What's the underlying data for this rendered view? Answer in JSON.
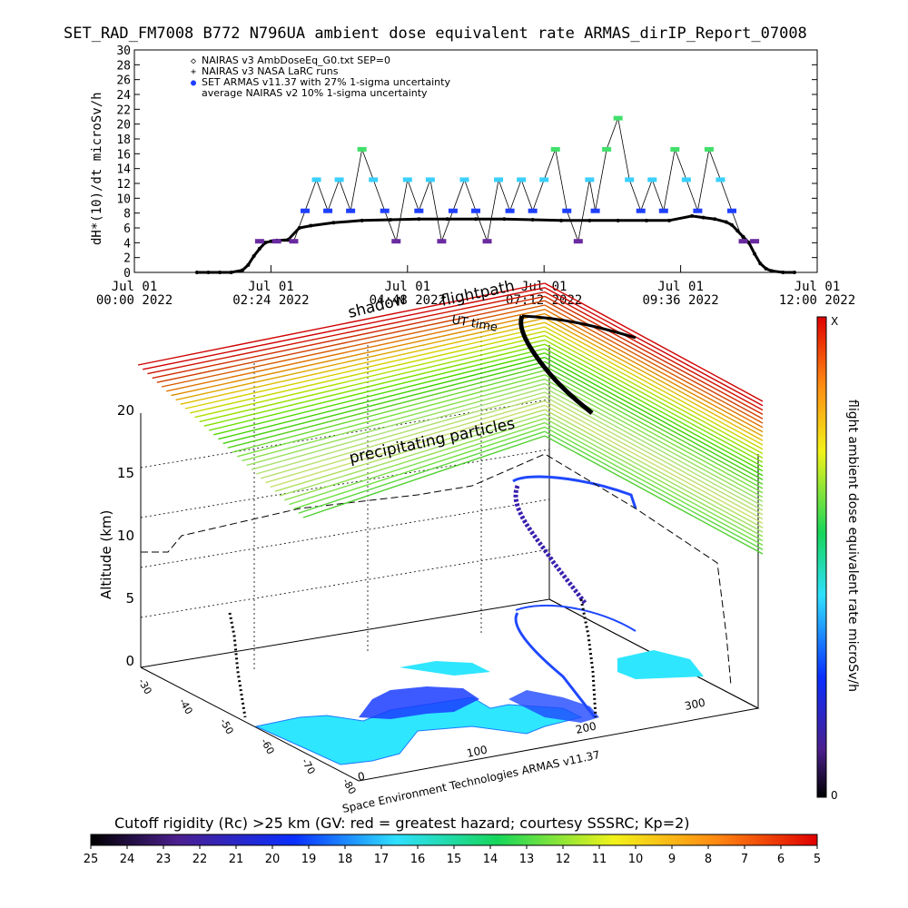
{
  "title": "SET_RAD_FM7008  B772 N796UA ambient dose equivalent rate ARMAS_dirIP_Report_07008",
  "chart_data": [
    {
      "type": "scatter",
      "ylabel": "dH*(10)/dt microSv/h",
      "xlabel": "",
      "ylim": [
        0,
        30
      ],
      "yticks": [
        "0",
        "2",
        "4",
        "6",
        "8",
        "10",
        "12",
        "14",
        "16",
        "18",
        "20",
        "22",
        "24",
        "26",
        "28",
        "30"
      ],
      "xlim_hours": [
        0,
        12
      ],
      "xticks": [
        {
          "h": 0,
          "line1": "Jul 01",
          "line2": "00:00 2022"
        },
        {
          "h": 2.4,
          "line1": "Jul 01",
          "line2": "02:24 2022"
        },
        {
          "h": 4.8,
          "line1": "Jul 01",
          "line2": "04:48 2022"
        },
        {
          "h": 7.2,
          "line1": "Jul 01",
          "line2": "07:12 2022"
        },
        {
          "h": 9.6,
          "line1": "Jul 01",
          "line2": "09:36 2022"
        },
        {
          "h": 12.0,
          "line1": "Jul 01",
          "line2": "12:00 2022"
        }
      ],
      "legend": [
        {
          "symbol": "◇",
          "label": "NAIRAS v3 AmbDoseEq_G0.txt SEP=0"
        },
        {
          "symbol": "+",
          "label": "NAIRAS v3 NASA LaRC runs"
        },
        {
          "symbol": "●",
          "label": "SET ARMAS v11.37 with 27% 1-sigma uncertainty"
        },
        {
          "symbol": "",
          "label": "average NAIRAS v2 10% 1-sigma uncertainty"
        }
      ],
      "legend_position": "top-left",
      "series": [
        {
          "name": "NAIRAS v3 AmbDoseEq_G0.txt SEP=0",
          "x_hours": [
            1.1,
            1.3,
            1.5,
            1.7,
            1.9,
            2.0,
            2.1,
            2.2,
            2.3,
            2.4,
            2.5,
            2.7,
            2.9,
            3.1,
            3.5,
            4.0,
            4.5,
            5.0,
            5.5,
            6.0,
            6.5,
            7.0,
            7.5,
            8.0,
            8.5,
            9.0,
            9.4,
            9.8,
            10.0,
            10.2,
            10.4,
            10.5,
            10.6,
            10.7,
            10.8,
            10.9,
            11.0,
            11.1,
            11.2,
            11.4,
            11.6
          ],
          "y": [
            0,
            0,
            0,
            0,
            0.3,
            1.0,
            2.2,
            3.2,
            4.0,
            4.2,
            4.3,
            4.4,
            6.0,
            6.3,
            6.7,
            7.0,
            7.1,
            7.2,
            7.2,
            7.2,
            7.2,
            7.1,
            7.0,
            7.0,
            7.0,
            7.0,
            7.0,
            7.6,
            7.4,
            7.2,
            6.8,
            6.4,
            5.6,
            4.8,
            4.0,
            2.5,
            1.2,
            0.5,
            0.2,
            0,
            0
          ]
        },
        {
          "name": "SET ARMAS v11.37 with 27% 1-sigma uncertainty",
          "x_hours": [
            2.2,
            2.5,
            2.8,
            3.0,
            3.2,
            3.4,
            3.6,
            3.8,
            4.0,
            4.2,
            4.4,
            4.6,
            4.8,
            5.0,
            5.2,
            5.4,
            5.6,
            5.8,
            6.0,
            6.2,
            6.4,
            6.6,
            6.8,
            7.0,
            7.2,
            7.4,
            7.6,
            7.8,
            8.0,
            8.1,
            8.3,
            8.5,
            8.7,
            8.9,
            9.1,
            9.3,
            9.5,
            9.7,
            9.9,
            10.1,
            10.3,
            10.5,
            10.7,
            10.9
          ],
          "y": [
            4.2,
            4.2,
            4.2,
            8.3,
            12.5,
            8.3,
            12.5,
            8.3,
            16.6,
            12.5,
            8.3,
            4.2,
            12.5,
            8.3,
            12.5,
            4.2,
            8.3,
            12.5,
            8.3,
            4.2,
            12.5,
            8.3,
            12.5,
            8.3,
            12.5,
            16.6,
            8.3,
            4.2,
            12.5,
            8.3,
            16.6,
            20.8,
            12.5,
            8.3,
            12.5,
            8.3,
            16.6,
            12.5,
            8.3,
            16.6,
            12.5,
            8.3,
            4.2,
            4.2
          ]
        }
      ]
    },
    {
      "type": "scatter",
      "ylabel": "Altitude (km)",
      "zticks": [
        "0",
        "5",
        "10",
        "15",
        "20"
      ],
      "axis_ticks_left": [
        "-30",
        "-40",
        "-50",
        "-60",
        "-70",
        "-80"
      ],
      "axis_ticks_bottom": [
        "0",
        "100",
        "200",
        "300"
      ],
      "annotations": [
        "shadow",
        "UT time",
        "flightpath",
        "precipitating particles"
      ],
      "credit": "Space Environment Technologies ARMAS v11.37",
      "colorbar_right_label": "flight ambient dose equivalent rate microSv/h",
      "colorbar_right_top": "X",
      "colorbar_right_bottom": "0"
    }
  ],
  "bottom_bar": {
    "label": "Cutoff rigidity (Rc) >25 km (GV: red = greatest hazard; courtesy SSSRC; Kp=2)",
    "ticks": [
      "25",
      "24",
      "23",
      "22",
      "21",
      "20",
      "19",
      "18",
      "17",
      "16",
      "15",
      "14",
      "13",
      "12",
      "11",
      "10",
      "9",
      "8",
      "7",
      "6",
      "5"
    ]
  },
  "colors": {
    "armas_points": "#1f3fff",
    "high_points": "#38d0ff",
    "peak_points": "#40e06a",
    "low_points": "#6a2aa0",
    "model_line": "#000000"
  }
}
